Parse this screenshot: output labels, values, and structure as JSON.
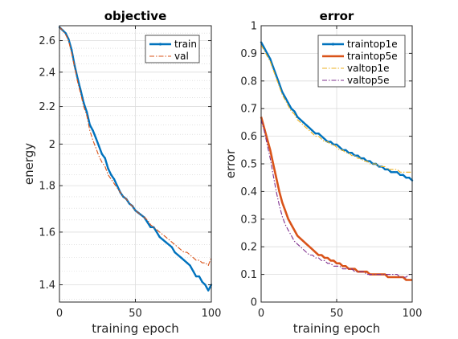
{
  "chart_data": [
    {
      "type": "line",
      "title": "objective",
      "xlabel": "training epoch",
      "ylabel": "energy",
      "y_scale": "log",
      "xlim": [
        0,
        100
      ],
      "ylim": [
        1.34,
        2.7
      ],
      "xticks": [
        0,
        50,
        100
      ],
      "xtick_labels": [
        "0",
        "50",
        "100"
      ],
      "yticks": [
        1.4,
        1.6,
        1.8,
        2,
        2.2,
        2.4,
        2.6
      ],
      "ytick_labels": [
        "1.4",
        "1.6",
        "1.8",
        "2",
        "2.2",
        "2.4",
        "2.6"
      ],
      "grid": true,
      "minor_grid": true,
      "legend": "top-right",
      "x": [
        0,
        2,
        4,
        6,
        8,
        10,
        12,
        14,
        16,
        18,
        20,
        22,
        24,
        26,
        28,
        30,
        32,
        34,
        36,
        38,
        40,
        42,
        44,
        46,
        48,
        50,
        52,
        54,
        56,
        58,
        60,
        62,
        64,
        66,
        68,
        70,
        72,
        74,
        76,
        78,
        80,
        82,
        84,
        86,
        88,
        90,
        92,
        94,
        96,
        98,
        100
      ],
      "series": [
        {
          "name": "train",
          "color": "#0072BD",
          "style": "solid-marker",
          "values": [
            2.69,
            2.67,
            2.65,
            2.61,
            2.54,
            2.44,
            2.36,
            2.29,
            2.22,
            2.17,
            2.1,
            2.07,
            2.03,
            1.99,
            1.95,
            1.93,
            1.88,
            1.85,
            1.83,
            1.8,
            1.77,
            1.75,
            1.74,
            1.72,
            1.71,
            1.69,
            1.68,
            1.67,
            1.66,
            1.64,
            1.62,
            1.62,
            1.6,
            1.58,
            1.57,
            1.56,
            1.55,
            1.54,
            1.52,
            1.51,
            1.5,
            1.49,
            1.48,
            1.47,
            1.45,
            1.43,
            1.43,
            1.41,
            1.4,
            1.38,
            1.4
          ]
        },
        {
          "name": "val",
          "color": "#D95319",
          "style": "dashdot",
          "values": [
            2.69,
            2.67,
            2.64,
            2.6,
            2.52,
            2.43,
            2.34,
            2.27,
            2.2,
            2.15,
            2.07,
            2.02,
            1.98,
            1.94,
            1.91,
            1.89,
            1.85,
            1.83,
            1.81,
            1.79,
            1.77,
            1.75,
            1.74,
            1.72,
            1.71,
            1.69,
            1.68,
            1.67,
            1.66,
            1.65,
            1.63,
            1.62,
            1.61,
            1.6,
            1.59,
            1.58,
            1.57,
            1.56,
            1.55,
            1.54,
            1.53,
            1.52,
            1.52,
            1.51,
            1.5,
            1.49,
            1.49,
            1.48,
            1.48,
            1.47,
            1.5
          ]
        }
      ]
    },
    {
      "type": "line",
      "title": "error",
      "xlabel": "training epoch",
      "ylabel": "error",
      "xlim": [
        0,
        100
      ],
      "ylim": [
        0,
        1
      ],
      "xticks": [
        0,
        50,
        100
      ],
      "xtick_labels": [
        "0",
        "50",
        "100"
      ],
      "yticks": [
        0,
        0.1,
        0.2,
        0.3,
        0.4,
        0.5,
        0.6,
        0.7,
        0.8,
        0.9,
        1
      ],
      "ytick_labels": [
        "0",
        "0.1",
        "0.2",
        "0.3",
        "0.4",
        "0.5",
        "0.6",
        "0.7",
        "0.8",
        "0.9",
        "1"
      ],
      "grid": true,
      "legend": "top-right",
      "x": [
        0,
        2,
        4,
        6,
        8,
        10,
        12,
        14,
        16,
        18,
        20,
        22,
        24,
        26,
        28,
        30,
        32,
        34,
        36,
        38,
        40,
        42,
        44,
        46,
        48,
        50,
        52,
        54,
        56,
        58,
        60,
        62,
        64,
        66,
        68,
        70,
        72,
        74,
        76,
        78,
        80,
        82,
        84,
        86,
        88,
        90,
        92,
        94,
        96,
        98,
        100
      ],
      "series": [
        {
          "name": "traintop1e",
          "color": "#0072BD",
          "style": "solid-marker",
          "values": [
            0.94,
            0.92,
            0.9,
            0.88,
            0.85,
            0.82,
            0.79,
            0.76,
            0.74,
            0.72,
            0.7,
            0.69,
            0.67,
            0.66,
            0.65,
            0.64,
            0.63,
            0.62,
            0.61,
            0.61,
            0.6,
            0.59,
            0.58,
            0.58,
            0.57,
            0.57,
            0.56,
            0.55,
            0.55,
            0.54,
            0.54,
            0.53,
            0.53,
            0.52,
            0.52,
            0.51,
            0.51,
            0.5,
            0.5,
            0.49,
            0.49,
            0.48,
            0.48,
            0.47,
            0.47,
            0.47,
            0.46,
            0.46,
            0.45,
            0.45,
            0.44
          ]
        },
        {
          "name": "traintop5e",
          "color": "#D95319",
          "style": "solid-thick",
          "values": [
            0.67,
            0.63,
            0.59,
            0.55,
            0.5,
            0.45,
            0.4,
            0.36,
            0.33,
            0.3,
            0.28,
            0.26,
            0.24,
            0.23,
            0.22,
            0.21,
            0.2,
            0.19,
            0.18,
            0.17,
            0.17,
            0.16,
            0.16,
            0.15,
            0.15,
            0.14,
            0.14,
            0.13,
            0.13,
            0.12,
            0.12,
            0.12,
            0.11,
            0.11,
            0.11,
            0.11,
            0.1,
            0.1,
            0.1,
            0.1,
            0.1,
            0.1,
            0.09,
            0.09,
            0.09,
            0.09,
            0.09,
            0.09,
            0.08,
            0.08,
            0.08
          ]
        },
        {
          "name": "valtop1e",
          "color": "#EDB120",
          "style": "dashdot",
          "values": [
            0.93,
            0.91,
            0.89,
            0.87,
            0.84,
            0.81,
            0.78,
            0.75,
            0.73,
            0.71,
            0.69,
            0.68,
            0.66,
            0.65,
            0.64,
            0.63,
            0.62,
            0.61,
            0.6,
            0.6,
            0.59,
            0.58,
            0.58,
            0.57,
            0.57,
            0.56,
            0.55,
            0.55,
            0.54,
            0.54,
            0.53,
            0.53,
            0.52,
            0.52,
            0.51,
            0.51,
            0.5,
            0.5,
            0.5,
            0.49,
            0.49,
            0.49,
            0.48,
            0.48,
            0.48,
            0.48,
            0.47,
            0.47,
            0.47,
            0.47,
            0.47
          ]
        },
        {
          "name": "valtop5e",
          "color": "#7E2F8E",
          "style": "dashdot",
          "values": [
            0.66,
            0.62,
            0.57,
            0.52,
            0.46,
            0.4,
            0.35,
            0.31,
            0.28,
            0.26,
            0.24,
            0.22,
            0.21,
            0.2,
            0.19,
            0.18,
            0.17,
            0.17,
            0.16,
            0.16,
            0.15,
            0.15,
            0.14,
            0.14,
            0.13,
            0.13,
            0.13,
            0.12,
            0.12,
            0.12,
            0.12,
            0.11,
            0.11,
            0.11,
            0.11,
            0.1,
            0.1,
            0.1,
            0.1,
            0.1,
            0.1,
            0.1,
            0.1,
            0.1,
            0.1,
            0.1,
            0.09,
            0.09,
            0.09,
            0.1,
            0.1
          ]
        }
      ]
    }
  ]
}
